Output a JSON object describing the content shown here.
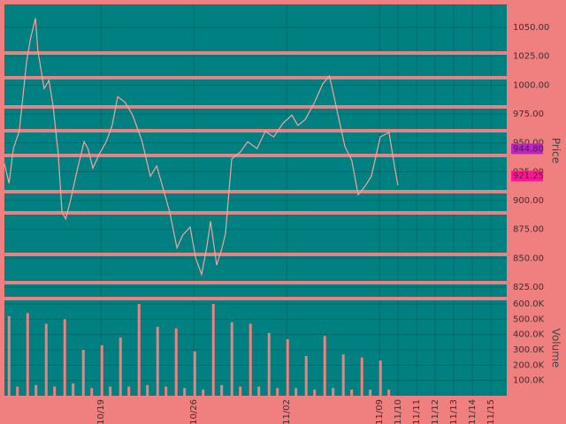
{
  "chart_data": [
    {
      "type": "line",
      "y_label": "Price",
      "color": "#f4a4a0",
      "panel_color": "#008080",
      "grid_color": "#006a6a",
      "xlim": [
        -0.2,
        26.85
      ],
      "x": [
        -0.2,
        0.05,
        0.28,
        0.6,
        0.99,
        1.2,
        1.47,
        1.6,
        1.94,
        2.2,
        2.42,
        2.7,
        2.9,
        3.1,
        3.37,
        3.7,
        4.09,
        4.3,
        4.56,
        4.9,
        5.28,
        5.6,
        5.9,
        6.3,
        6.7,
        7.2,
        7.66,
        8.0,
        8.37,
        8.7,
        9.09,
        9.4,
        9.8,
        10.1,
        10.42,
        10.7,
        10.9,
        11.23,
        11.5,
        11.7,
        12.04,
        12.5,
        12.9,
        13.4,
        13.85,
        14.3,
        14.8,
        15.28,
        15.6,
        15.99,
        16.5,
        16.94,
        17.3,
        17.66,
        18.13,
        18.5,
        18.85,
        19.2,
        19.56,
        20.04,
        20.51,
        20.8,
        20.99
      ],
      "values": [
        932,
        915,
        945,
        960,
        1020,
        1040,
        1058,
        1030,
        997,
        1004,
        982,
        940,
        890,
        884,
        901,
        925,
        951,
        945,
        928,
        940,
        951,
        965,
        990,
        985,
        974,
        952,
        921,
        930,
        909,
        890,
        859,
        870,
        877,
        850,
        836,
        860,
        882,
        844,
        858,
        871,
        936,
        942,
        951,
        945,
        960,
        955,
        967,
        974,
        965,
        970,
        985,
        1001,
        1008,
        982,
        947,
        935,
        905,
        912,
        921,
        955,
        959,
        930,
        913
      ],
      "ylim": [
        816.6,
        1069.9
      ],
      "yticks": [
        {
          "value": 825,
          "label": "825.00"
        },
        {
          "value": 850,
          "label": "850.00"
        },
        {
          "value": 875,
          "label": "875.00"
        },
        {
          "value": 900,
          "label": "900.00"
        },
        {
          "value": 925,
          "label": "925.00"
        },
        {
          "value": 950,
          "label": "950.00"
        },
        {
          "value": 975,
          "label": "975.00"
        },
        {
          "value": 1000,
          "label": "1000.00"
        },
        {
          "value": 1025,
          "label": "1025.00"
        },
        {
          "value": 1050,
          "label": "1050.00"
        }
      ],
      "levels": [
        1027.8,
        1006.4,
        981.1,
        960.5,
        939,
        907.7,
        889.3,
        853.3,
        828.8
      ],
      "level_color": "#e58383",
      "markers": [
        {
          "value": 944.8,
          "label": "944.80",
          "color": "#c020c8"
        },
        {
          "value": 921.25,
          "label": "921.25",
          "color": "#ff1493"
        }
      ]
    },
    {
      "type": "bar",
      "y_label": "Volume",
      "color": "#f08080",
      "panel_color": "#008080",
      "grid_color": "#006a6a",
      "xlim": [
        -0.2,
        26.85
      ],
      "x": [
        0.05,
        0.5,
        1.05,
        1.5,
        2.05,
        2.5,
        3.05,
        3.5,
        4.05,
        4.5,
        5.05,
        5.5,
        6.05,
        6.5,
        7.05,
        7.5,
        8.05,
        8.5,
        9.05,
        9.5,
        10.05,
        10.5,
        11.05,
        11.5,
        12.05,
        12.5,
        13.05,
        13.5,
        14.05,
        14.5,
        15.05,
        15.5,
        16.05,
        16.5,
        17.05,
        17.5,
        18.05,
        18.5,
        19.05,
        19.5,
        20.05,
        20.5
      ],
      "values": [
        520000,
        60000,
        540000,
        70000,
        470000,
        60000,
        500000,
        80000,
        300000,
        50000,
        330000,
        60000,
        380000,
        60000,
        600000,
        70000,
        450000,
        60000,
        440000,
        50000,
        290000,
        40000,
        600000,
        70000,
        480000,
        60000,
        470000,
        60000,
        410000,
        50000,
        370000,
        50000,
        260000,
        40000,
        390000,
        50000,
        270000,
        40000,
        250000,
        40000,
        230000,
        40000
      ],
      "ylim": [
        0,
        623000
      ],
      "yticks": [
        {
          "value": 100000,
          "label": "100.0K"
        },
        {
          "value": 200000,
          "label": "200.0K"
        },
        {
          "value": 300000,
          "label": "300.0K"
        },
        {
          "value": 400000,
          "label": "400.0K"
        },
        {
          "value": 500000,
          "label": "500.0K"
        },
        {
          "value": 600000,
          "label": "600.0K"
        }
      ],
      "xticks": [
        {
          "value": 5,
          "label": "10/19"
        },
        {
          "value": 10,
          "label": "10/26"
        },
        {
          "value": 15,
          "label": "11/02"
        },
        {
          "value": 20,
          "label": "11/09"
        },
        {
          "value": 21,
          "label": "11/10"
        },
        {
          "value": 22,
          "label": "11/11"
        },
        {
          "value": 23,
          "label": "11/12"
        },
        {
          "value": 24,
          "label": "11/13"
        },
        {
          "value": 25,
          "label": "11/14"
        },
        {
          "value": 26,
          "label": "11/15"
        }
      ]
    }
  ]
}
